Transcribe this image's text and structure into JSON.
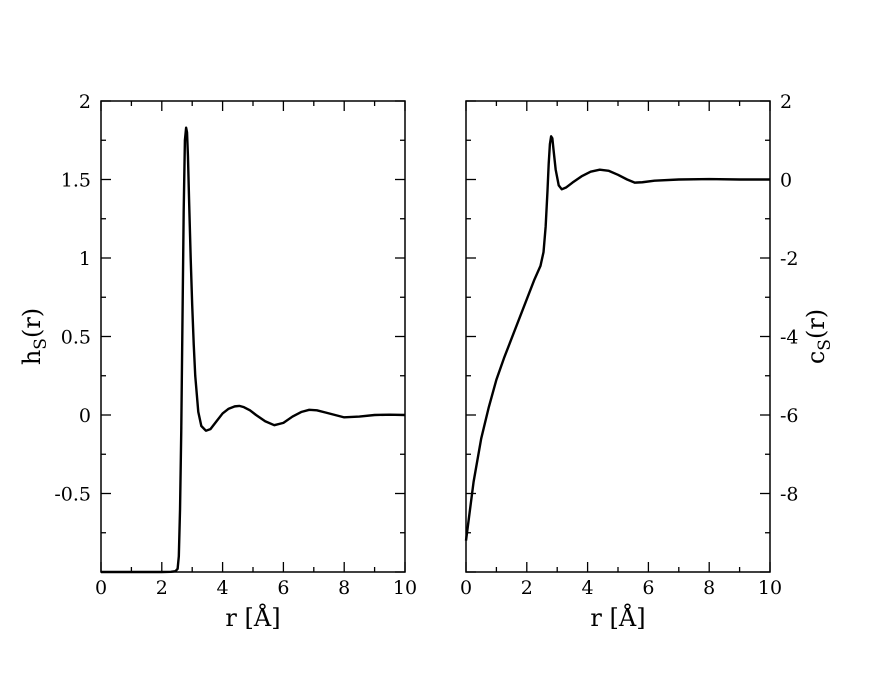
{
  "chart_data": [
    {
      "type": "line",
      "xlabel_main": "r [Å]",
      "ylabel_main": "h",
      "ylabel_sub": "S",
      "ylabel_tail": "(r)",
      "xlim": [
        0,
        10
      ],
      "ylim": [
        -1,
        2
      ],
      "x_tick_labels": [
        "0",
        "2",
        "4",
        "6",
        "8",
        "10"
      ],
      "y_tick_labels": [
        "-0.5",
        "0",
        "0.5",
        "1",
        "1.5",
        "2"
      ],
      "y_axis_side": "left",
      "grid": false,
      "series": [
        {
          "x": [
            0,
            1,
            2,
            2.3,
            2.45,
            2.52,
            2.56,
            2.6,
            2.64,
            2.68,
            2.72,
            2.76,
            2.8,
            2.83,
            2.86,
            2.9,
            2.95,
            3.0,
            3.05,
            3.1,
            3.2,
            3.3,
            3.45,
            3.6,
            3.8,
            4.0,
            4.2,
            4.4,
            4.55,
            4.7,
            4.9,
            5.1,
            5.4,
            5.7,
            6.0,
            6.3,
            6.6,
            6.85,
            7.1,
            7.4,
            7.7,
            8.0,
            8.5,
            9.0,
            9.5,
            10.0
          ],
          "y": [
            -1.0,
            -1.0,
            -1.0,
            -0.999,
            -0.995,
            -0.98,
            -0.9,
            -0.6,
            -0.1,
            0.6,
            1.3,
            1.75,
            1.83,
            1.8,
            1.65,
            1.35,
            1.0,
            0.7,
            0.45,
            0.25,
            0.02,
            -0.07,
            -0.1,
            -0.09,
            -0.04,
            0.01,
            0.04,
            0.055,
            0.058,
            0.05,
            0.03,
            0.0,
            -0.04,
            -0.065,
            -0.05,
            -0.01,
            0.02,
            0.033,
            0.03,
            0.015,
            0.0,
            -0.015,
            -0.01,
            0.0,
            0.002,
            0.0
          ]
        }
      ]
    },
    {
      "type": "line",
      "xlabel_main": "r [Å]",
      "ylabel_main": "c",
      "ylabel_sub": "S",
      "ylabel_tail": "(r)",
      "xlim": [
        0,
        10
      ],
      "ylim": [
        -10,
        2
      ],
      "x_tick_labels": [
        "0",
        "2",
        "4",
        "6",
        "8",
        "10"
      ],
      "y_tick_labels": [
        "-8",
        "-6",
        "-4",
        "-2",
        "0",
        "2"
      ],
      "y_axis_side": "right",
      "grid": false,
      "series": [
        {
          "x": [
            0,
            0.1,
            0.25,
            0.5,
            0.75,
            1.0,
            1.25,
            1.5,
            1.75,
            2.0,
            2.25,
            2.45,
            2.55,
            2.62,
            2.68,
            2.72,
            2.76,
            2.8,
            2.84,
            2.88,
            2.95,
            3.05,
            3.15,
            3.3,
            3.5,
            3.8,
            4.1,
            4.4,
            4.7,
            5.0,
            5.3,
            5.55,
            5.8,
            6.2,
            7.0,
            8.0,
            9.0,
            10.0
          ],
          "y": [
            -9.2,
            -8.6,
            -7.7,
            -6.6,
            -5.8,
            -5.1,
            -4.55,
            -4.05,
            -3.55,
            -3.05,
            -2.55,
            -2.2,
            -1.85,
            -1.2,
            -0.3,
            0.4,
            0.9,
            1.1,
            1.05,
            0.75,
            0.25,
            -0.15,
            -0.25,
            -0.2,
            -0.08,
            0.08,
            0.2,
            0.25,
            0.22,
            0.12,
            0.0,
            -0.08,
            -0.07,
            -0.03,
            0.0,
            0.01,
            0.0,
            0.0
          ]
        }
      ]
    }
  ]
}
